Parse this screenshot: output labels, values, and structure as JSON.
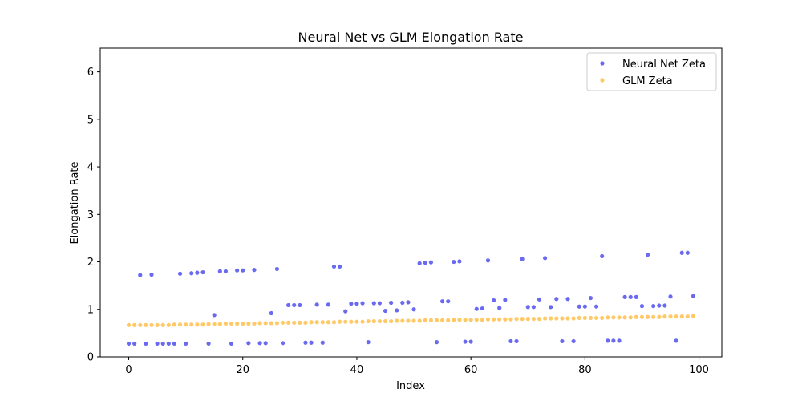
{
  "chart_data": {
    "type": "scatter",
    "title": "Neural Net vs GLM Elongation Rate",
    "xlabel": "Index",
    "ylabel": "Elongation Rate",
    "xlim": [
      -5,
      104
    ],
    "ylim": [
      0,
      6.5
    ],
    "xticks": [
      0,
      20,
      40,
      60,
      80,
      100
    ],
    "yticks": [
      0,
      1,
      2,
      3,
      4,
      5,
      6
    ],
    "legend_position": "top-right",
    "series": [
      {
        "name": "Neural Net Zeta",
        "color": "#5a5af0",
        "x": [
          0,
          1,
          2,
          3,
          4,
          5,
          6,
          7,
          8,
          9,
          10,
          11,
          12,
          13,
          14,
          15,
          16,
          17,
          18,
          19,
          20,
          21,
          22,
          23,
          24,
          25,
          26,
          27,
          28,
          29,
          30,
          31,
          32,
          33,
          34,
          35,
          36,
          37,
          38,
          39,
          40,
          41,
          42,
          43,
          44,
          45,
          46,
          47,
          48,
          49,
          50,
          51,
          52,
          53,
          54,
          55,
          56,
          57,
          58,
          59,
          60,
          61,
          62,
          63,
          64,
          65,
          66,
          67,
          68,
          69,
          70,
          71,
          72,
          73,
          74,
          75,
          76,
          77,
          78,
          79,
          80,
          81,
          82,
          83,
          84,
          85,
          86,
          87,
          88,
          89,
          90,
          91,
          92,
          93,
          94,
          95,
          96,
          97,
          98,
          99
        ],
        "y": [
          0.28,
          0.28,
          1.72,
          0.28,
          1.73,
          0.28,
          0.28,
          0.28,
          0.28,
          1.75,
          0.28,
          1.76,
          1.77,
          1.78,
          0.28,
          0.88,
          1.8,
          1.8,
          0.28,
          1.82,
          1.82,
          0.29,
          1.83,
          0.29,
          0.29,
          0.92,
          1.85,
          0.29,
          1.09,
          1.09,
          1.09,
          0.3,
          0.3,
          1.1,
          0.3,
          1.1,
          1.9,
          1.9,
          0.96,
          1.12,
          1.12,
          1.13,
          0.31,
          1.13,
          1.13,
          0.97,
          1.14,
          0.98,
          1.14,
          1.15,
          1.0,
          1.97,
          1.98,
          1.99,
          0.31,
          1.17,
          1.17,
          2.0,
          2.01,
          0.32,
          0.32,
          1.01,
          1.02,
          2.03,
          1.19,
          1.03,
          1.2,
          0.33,
          0.33,
          2.06,
          1.05,
          1.05,
          1.21,
          2.08,
          1.05,
          1.22,
          0.33,
          1.22,
          0.33,
          1.06,
          1.06,
          1.24,
          1.06,
          2.12,
          0.34,
          0.34,
          0.34,
          1.26,
          1.26,
          1.26,
          1.07,
          2.15,
          1.07,
          1.08,
          1.08,
          1.27,
          0.34,
          2.19,
          2.19,
          1.28
        ]
      },
      {
        "name": "GLM Zeta",
        "color": "#ffc04d",
        "x": [
          0,
          1,
          2,
          3,
          4,
          5,
          6,
          7,
          8,
          9,
          10,
          11,
          12,
          13,
          14,
          15,
          16,
          17,
          18,
          19,
          20,
          21,
          22,
          23,
          24,
          25,
          26,
          27,
          28,
          29,
          30,
          31,
          32,
          33,
          34,
          35,
          36,
          37,
          38,
          39,
          40,
          41,
          42,
          43,
          44,
          45,
          46,
          47,
          48,
          49,
          50,
          51,
          52,
          53,
          54,
          55,
          56,
          57,
          58,
          59,
          60,
          61,
          62,
          63,
          64,
          65,
          66,
          67,
          68,
          69,
          70,
          71,
          72,
          73,
          74,
          75,
          76,
          77,
          78,
          79,
          80,
          81,
          82,
          83,
          84,
          85,
          86,
          87,
          88,
          89,
          90,
          91,
          92,
          93,
          94,
          95,
          96,
          97,
          98,
          99
        ],
        "y": [
          0.67,
          0.67,
          0.67,
          0.67,
          0.67,
          0.67,
          0.67,
          0.67,
          0.68,
          0.68,
          0.68,
          0.68,
          0.68,
          0.68,
          0.69,
          0.69,
          0.69,
          0.7,
          0.7,
          0.7,
          0.7,
          0.7,
          0.7,
          0.71,
          0.71,
          0.71,
          0.71,
          0.72,
          0.72,
          0.72,
          0.72,
          0.72,
          0.73,
          0.73,
          0.73,
          0.73,
          0.73,
          0.74,
          0.74,
          0.74,
          0.74,
          0.74,
          0.75,
          0.75,
          0.75,
          0.75,
          0.75,
          0.76,
          0.76,
          0.76,
          0.76,
          0.76,
          0.77,
          0.77,
          0.77,
          0.77,
          0.77,
          0.78,
          0.78,
          0.78,
          0.78,
          0.78,
          0.78,
          0.79,
          0.79,
          0.79,
          0.79,
          0.79,
          0.8,
          0.8,
          0.8,
          0.8,
          0.8,
          0.81,
          0.81,
          0.81,
          0.81,
          0.81,
          0.81,
          0.82,
          0.82,
          0.82,
          0.82,
          0.82,
          0.83,
          0.83,
          0.83,
          0.83,
          0.83,
          0.84,
          0.84,
          0.84,
          0.84,
          0.84,
          0.85,
          0.85,
          0.85,
          0.85,
          0.85,
          0.86
        ]
      }
    ]
  }
}
